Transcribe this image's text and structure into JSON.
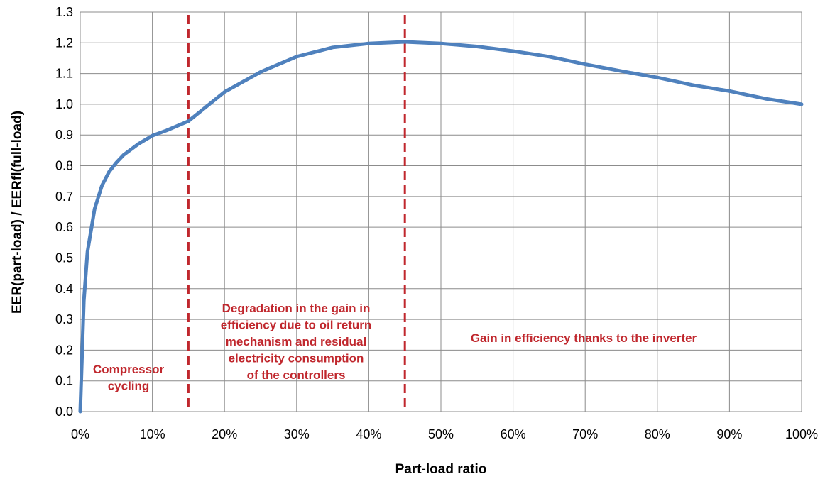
{
  "chart_data": {
    "type": "line",
    "xlabel": "Part-load ratio",
    "ylabel": "EER(part-load)  / EERfl(full-load)",
    "xlim": [
      0,
      100
    ],
    "ylim": [
      0,
      1.3
    ],
    "x_ticks": [
      "0%",
      "10%",
      "20%",
      "30%",
      "40%",
      "50%",
      "60%",
      "70%",
      "80%",
      "90%",
      "100%"
    ],
    "y_ticks": [
      "0.0",
      "0.1",
      "0.2",
      "0.3",
      "0.4",
      "0.5",
      "0.6",
      "0.7",
      "0.8",
      "0.9",
      "1.0",
      "1.1",
      "1.2",
      "1.3"
    ],
    "grid": true,
    "series_color": "#4f81bd",
    "series": [
      {
        "x": [
          0,
          0.5,
          1,
          2,
          3,
          4,
          5,
          6,
          8,
          10,
          12,
          15,
          20,
          25,
          30,
          35,
          40,
          45,
          50,
          55,
          60,
          65,
          70,
          75,
          80,
          85,
          90,
          95,
          100
        ],
        "values": [
          0.0,
          0.36,
          0.52,
          0.66,
          0.735,
          0.78,
          0.81,
          0.835,
          0.87,
          0.898,
          0.915,
          0.945,
          1.04,
          1.105,
          1.155,
          1.185,
          1.198,
          1.203,
          1.198,
          1.188,
          1.173,
          1.155,
          1.13,
          1.108,
          1.087,
          1.062,
          1.043,
          1.018,
          1.0
        ]
      }
    ],
    "vlines": {
      "x": [
        15,
        45
      ],
      "color": "#c0272d",
      "style": "dashed"
    },
    "annotation_color": "#c0272d",
    "annotations": [
      {
        "lines": [
          "Compressor",
          "cycling"
        ]
      },
      {
        "lines": [
          "Degradation in the gain in",
          "efficiency due to oil return",
          "mechanism and residual",
          "electricity consumption",
          "of the controllers"
        ]
      },
      {
        "lines": [
          "Gain in efficiency thanks to the inverter"
        ]
      }
    ]
  }
}
